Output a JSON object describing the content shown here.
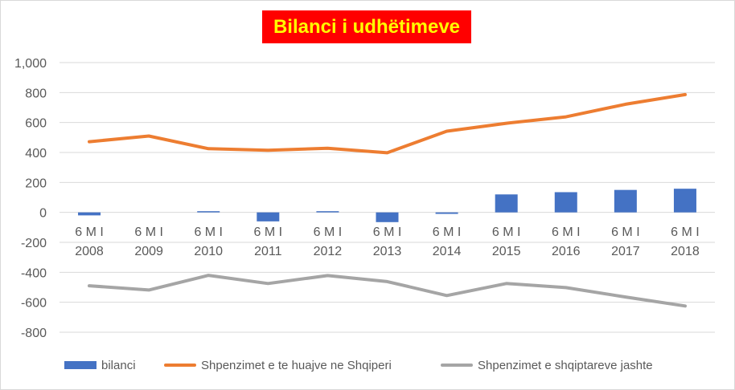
{
  "chart_data": {
    "type": "bar",
    "title": "Bilanci i udhëtimeve",
    "categories": [
      [
        "6 M I",
        "2008"
      ],
      [
        "6 M I",
        "2009"
      ],
      [
        "6 M I",
        "2010"
      ],
      [
        "6 M I",
        "2011"
      ],
      [
        "6 M I",
        "2012"
      ],
      [
        "6 M I",
        "2013"
      ],
      [
        "6 M I",
        "2014"
      ],
      [
        "6 M I",
        "2015"
      ],
      [
        "6 M I",
        "2016"
      ],
      [
        "6 M I",
        "2017"
      ],
      [
        "6 M I",
        "2018"
      ]
    ],
    "ylim": [
      -800,
      1000
    ],
    "yticks": [
      "1,000",
      "800",
      "600",
      "400",
      "200",
      "0",
      "-200",
      "-400",
      "-600",
      "-800"
    ],
    "ytick_values": [
      1000,
      800,
      600,
      400,
      200,
      0,
      -200,
      -400,
      -600,
      -800
    ],
    "grid": true,
    "legend_position": "bottom",
    "series": [
      {
        "name": "bilanci",
        "kind": "bar",
        "color": "#4472c4",
        "values": [
          -20,
          0,
          8,
          -60,
          8,
          -65,
          -10,
          120,
          135,
          150,
          158
        ]
      },
      {
        "name": "Shpenzimet e te huajve ne Shqiperi",
        "kind": "line",
        "color": "#ed7d31",
        "values": [
          472,
          510,
          425,
          415,
          428,
          398,
          542,
          595,
          638,
          722,
          786
        ]
      },
      {
        "name": "Shpenzimet e shqiptareve jashte",
        "kind": "line",
        "color": "#a5a5a5",
        "values": [
          -490,
          -518,
          -420,
          -475,
          -422,
          -462,
          -555,
          -475,
          -502,
          -565,
          -625
        ]
      }
    ]
  }
}
